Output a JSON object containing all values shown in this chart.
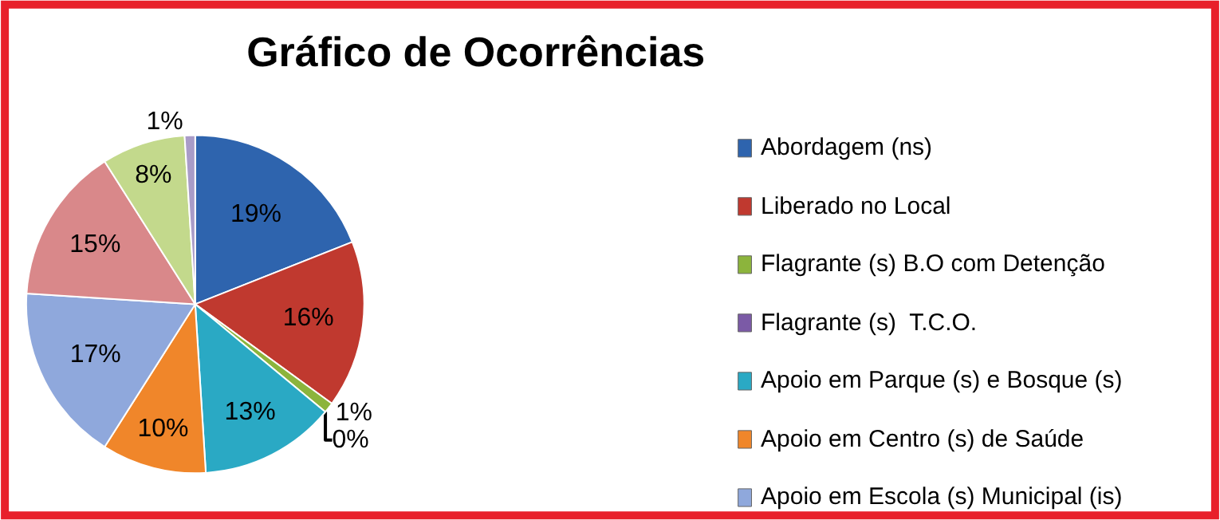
{
  "chart_data": {
    "type": "pie",
    "title": "Gráfico de Ocorrências",
    "categories": [
      "Abordagem (ns)",
      "Liberado no Local",
      "Flagrante (s) B.O com Detenção",
      "Flagrante (s)  T.C.O.",
      "Apoio em Parque (s) e Bosque (s)",
      "Apoio em Centro (s) de Saúde",
      "Apoio em Escola (s) Municipal (is)",
      null,
      null,
      null
    ],
    "values": [
      19,
      16,
      1,
      0,
      13,
      10,
      17,
      15,
      8,
      1
    ],
    "value_labels": [
      "19%",
      "16%",
      "1%",
      "0%",
      "13%",
      "10%",
      "17%",
      "15%",
      "8%",
      "1%"
    ],
    "colors": [
      "#2e64ae",
      "#c0392f",
      "#8cb43c",
      "#7b5aa6",
      "#2aa9c4",
      "#f0862a",
      "#8fa8dc",
      "#d9888a",
      "#c3d98c",
      "#a99cc8"
    ],
    "legend": "right"
  }
}
